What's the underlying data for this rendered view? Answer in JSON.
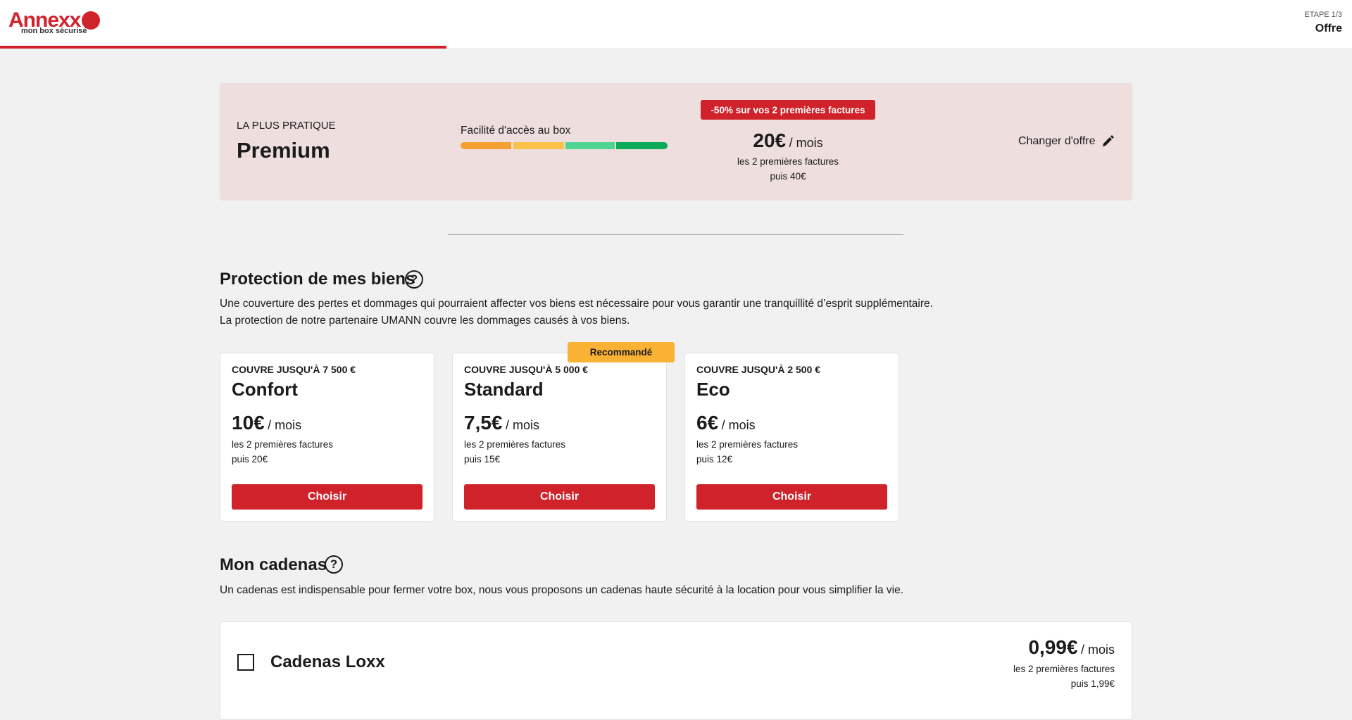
{
  "header": {
    "logo": "Annexx",
    "logo_tagline": "mon box sécurisé",
    "step": "ETAPE 1/3",
    "step_title": "Offre"
  },
  "offer": {
    "tag": "LA PLUS PRATIQUE",
    "name": "Premium",
    "access_label": "Facilité d'accès au box",
    "promo": "-50% sur vos 2 premières factures",
    "price": "20€",
    "period": "/ mois",
    "note": "les 2 premières factures",
    "then": "puis 40€",
    "change": "Changer d'offre"
  },
  "protection": {
    "title": "Protection de mes biens",
    "help": "?",
    "lines": [
      "Une couverture des pertes et dommages qui pourraient affecter vos biens est nécessaire pour vous garantir une tranquillité d’esprit supplémentaire.",
      "La protection de notre partenaire UMANN couvre les dommages causés à vos biens."
    ],
    "plans": [
      {
        "cover": "COUVRE JUSQU'À 7 500 €",
        "name": "Confort",
        "price": "10€",
        "period": "/ mois",
        "note": "les 2 premières factures",
        "then": "puis 20€",
        "button": "Choisir"
      },
      {
        "badge": "Recommandé",
        "cover": "COUVRE JUSQU'À 5 000 €",
        "name": "Standard",
        "price": "7,5€",
        "period": "/ mois",
        "note": "les 2 premières factures",
        "then": "puis 15€",
        "button": "Choisir"
      },
      {
        "cover": "COUVRE JUSQU'À 2 500 €",
        "name": "Eco",
        "price": "6€",
        "period": "/ mois",
        "note": "les 2 premières factures",
        "then": "puis 12€",
        "button": "Choisir"
      }
    ]
  },
  "cadenas": {
    "title": "Mon cadenas",
    "help": "?",
    "line": "Un cadenas est indispensable pour fermer votre box, nous vous proposons un cadenas haute sécurité à la location pour vous simplifier la vie.",
    "item": "Cadenas Loxx",
    "price": "0,99€",
    "period": "/ mois",
    "note": "les 2 premières factures",
    "then": "puis 1,99€"
  }
}
